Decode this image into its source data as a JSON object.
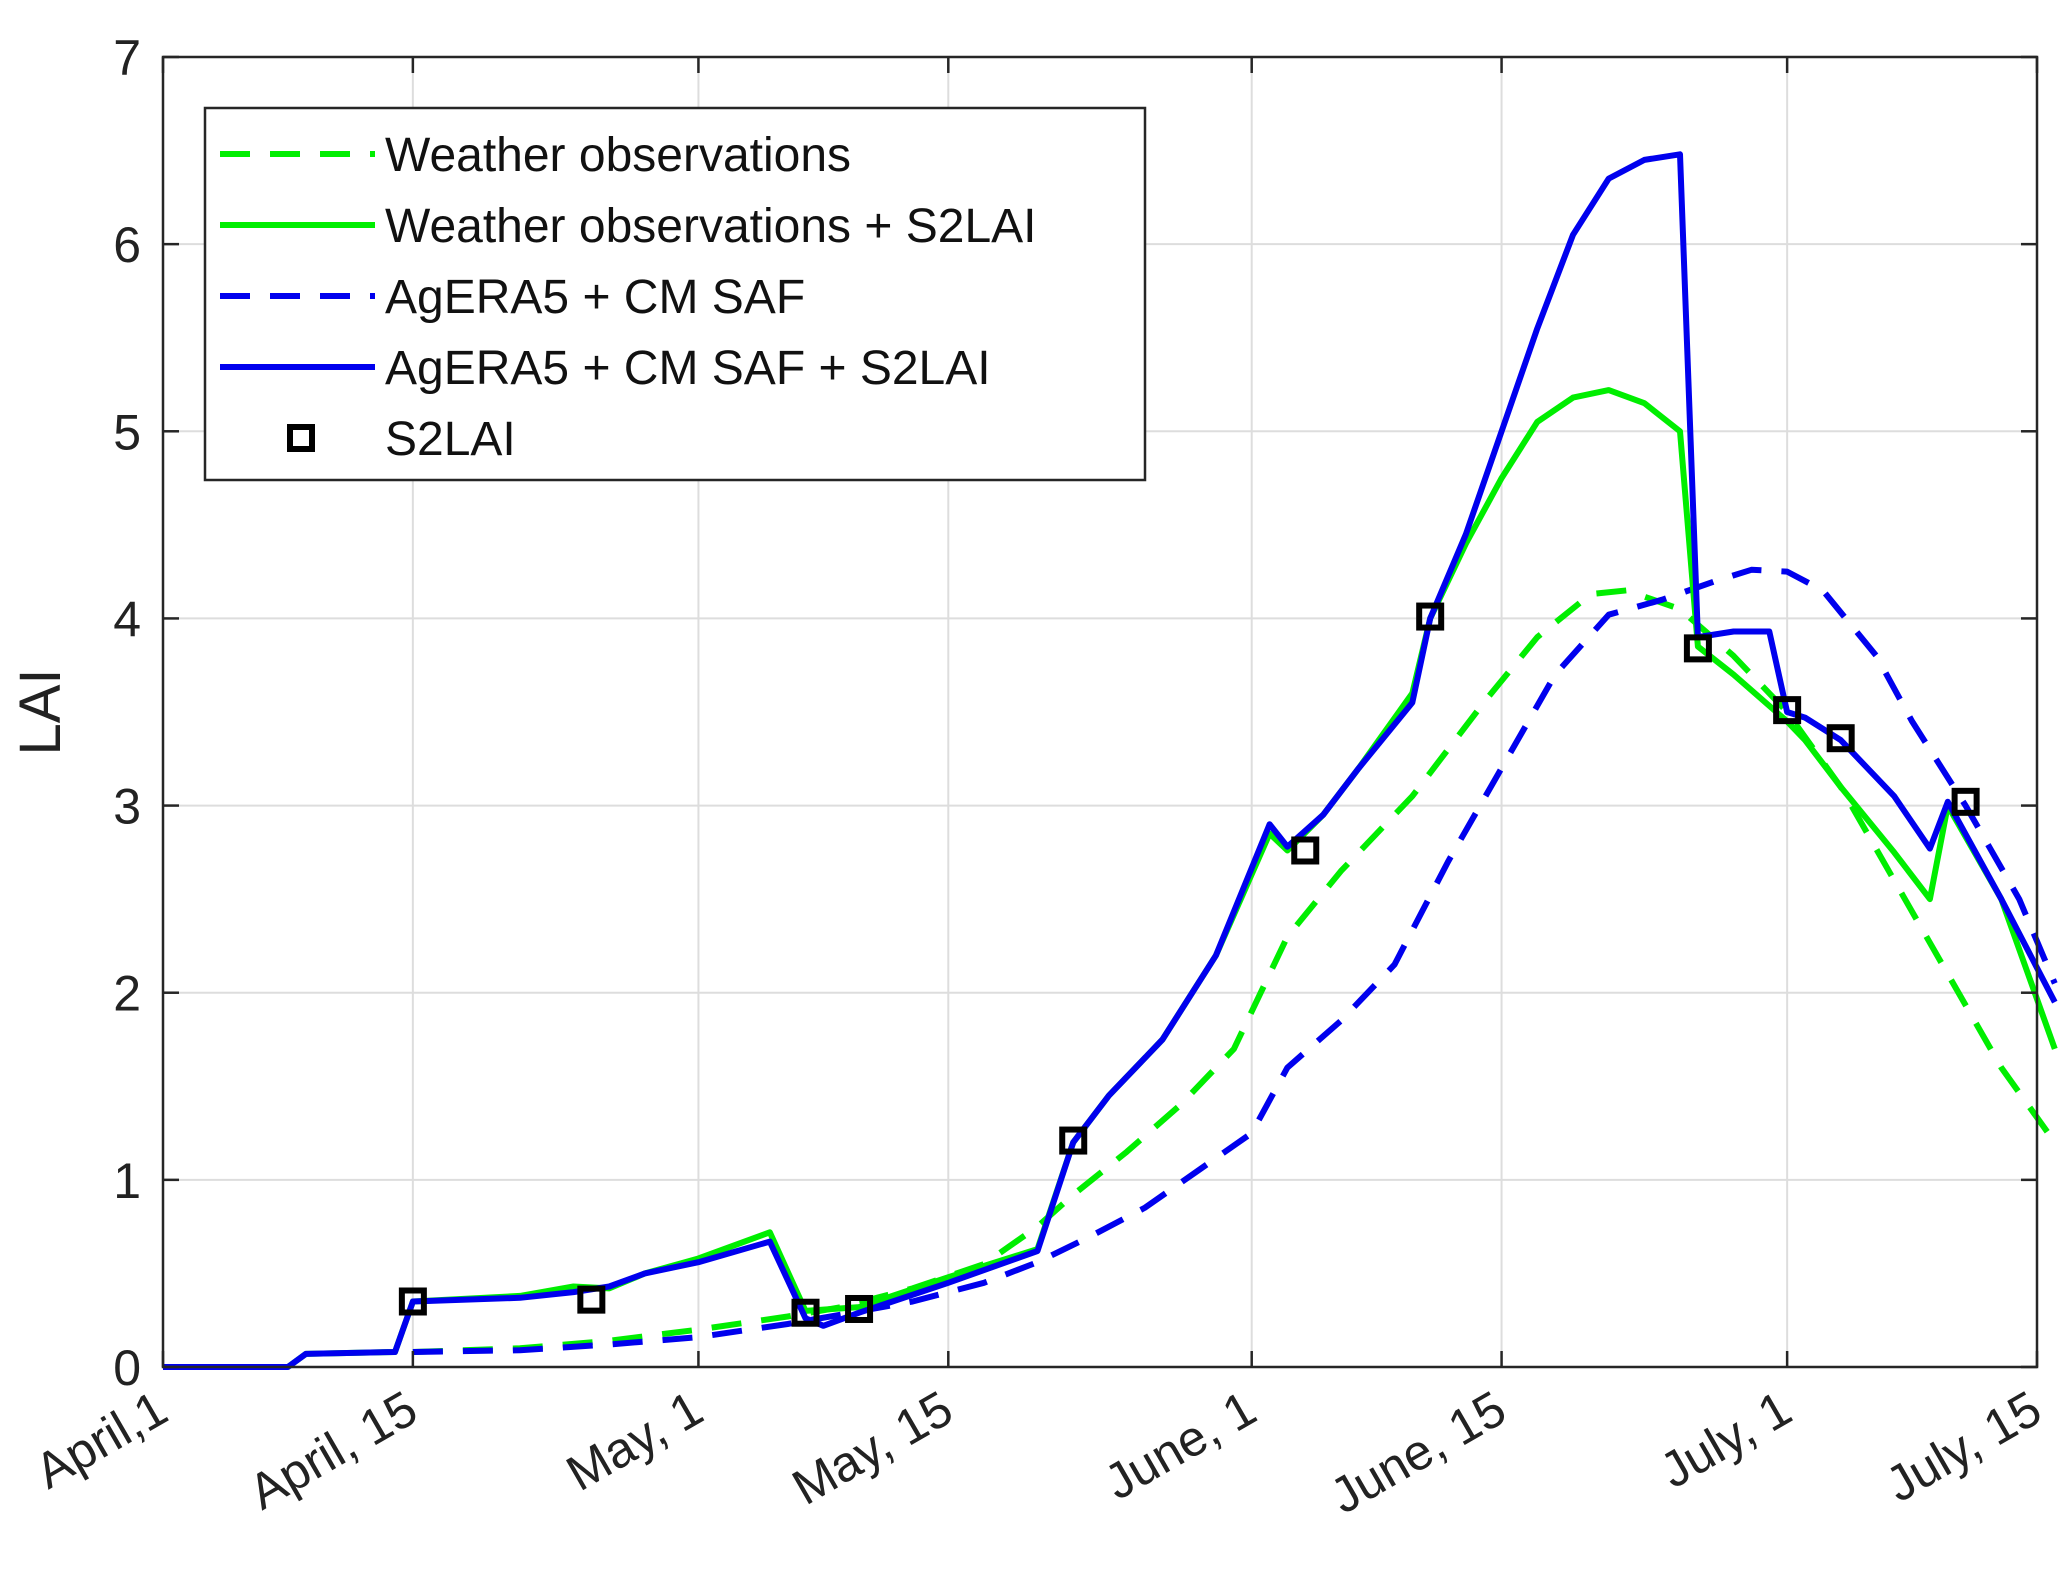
{
  "chart_data": {
    "type": "line",
    "title": "",
    "xlabel": "",
    "ylabel": "LAI",
    "xlim": [
      0,
      105
    ],
    "ylim": [
      0,
      7
    ],
    "grid": true,
    "legend_position": "top-left",
    "x_unit": "days since April 1",
    "x_ticks": [
      {
        "value": 0,
        "label": "April,1"
      },
      {
        "value": 14,
        "label": "April, 15"
      },
      {
        "value": 30,
        "label": "May, 1"
      },
      {
        "value": 44,
        "label": "May, 15"
      },
      {
        "value": 61,
        "label": "June, 1"
      },
      {
        "value": 75,
        "label": "June, 15"
      },
      {
        "value": 91,
        "label": "July, 1"
      },
      {
        "value": 105,
        "label": "July, 15"
      }
    ],
    "y_ticks": [
      {
        "value": 0,
        "label": "0"
      },
      {
        "value": 1,
        "label": "1"
      },
      {
        "value": 2,
        "label": "2"
      },
      {
        "value": 3,
        "label": "3"
      },
      {
        "value": 4,
        "label": "4"
      },
      {
        "value": 5,
        "label": "5"
      },
      {
        "value": 6,
        "label": "6"
      },
      {
        "value": 7,
        "label": "7"
      }
    ],
    "series": [
      {
        "name": "Weather observations",
        "color": "#00ee00",
        "style": "dashed",
        "points": [
          [
            14,
            0.08
          ],
          [
            20,
            0.1
          ],
          [
            25,
            0.14
          ],
          [
            30,
            0.2
          ],
          [
            35,
            0.27
          ],
          [
            38,
            0.32
          ],
          [
            42,
            0.42
          ],
          [
            46,
            0.55
          ],
          [
            49,
            0.75
          ],
          [
            51,
            0.92
          ],
          [
            54,
            1.15
          ],
          [
            57,
            1.4
          ],
          [
            60,
            1.7
          ],
          [
            63,
            2.3
          ],
          [
            66,
            2.65
          ],
          [
            70,
            3.05
          ],
          [
            74,
            3.55
          ],
          [
            77,
            3.9
          ],
          [
            80,
            4.13
          ],
          [
            82,
            4.15
          ],
          [
            85,
            4.05
          ],
          [
            88,
            3.8
          ],
          [
            91,
            3.5
          ],
          [
            94,
            3.1
          ],
          [
            97,
            2.6
          ],
          [
            100,
            2.1
          ],
          [
            103,
            1.6
          ],
          [
            106,
            1.2
          ]
        ]
      },
      {
        "name": "Weather observations + S2LAI",
        "color": "#00ee00",
        "style": "solid",
        "points": [
          [
            0,
            0
          ],
          [
            7,
            0
          ],
          [
            8,
            0.07
          ],
          [
            13,
            0.08
          ],
          [
            14,
            0.35
          ],
          [
            20,
            0.38
          ],
          [
            23,
            0.43
          ],
          [
            25,
            0.42
          ],
          [
            27,
            0.5
          ],
          [
            30,
            0.58
          ],
          [
            34,
            0.72
          ],
          [
            36,
            0.3
          ],
          [
            39,
            0.32
          ],
          [
            44,
            0.48
          ],
          [
            49,
            0.63
          ],
          [
            51,
            1.2
          ],
          [
            53,
            1.45
          ],
          [
            56,
            1.75
          ],
          [
            59,
            2.2
          ],
          [
            62,
            2.85
          ],
          [
            63,
            2.76
          ],
          [
            65,
            2.95
          ],
          [
            67,
            3.2
          ],
          [
            70,
            3.6
          ],
          [
            71,
            4.0
          ],
          [
            73,
            4.4
          ],
          [
            75,
            4.75
          ],
          [
            77,
            5.05
          ],
          [
            79,
            5.18
          ],
          [
            81,
            5.22
          ],
          [
            83,
            5.15
          ],
          [
            85,
            5.0
          ],
          [
            86,
            3.85
          ],
          [
            88,
            3.7
          ],
          [
            91,
            3.45
          ],
          [
            92,
            3.35
          ],
          [
            94,
            3.1
          ],
          [
            97,
            2.75
          ],
          [
            99,
            2.5
          ],
          [
            100,
            3.0
          ],
          [
            103,
            2.5
          ],
          [
            106,
            1.7
          ]
        ]
      },
      {
        "name": "AgERA5 + CM SAF",
        "color": "#0000ee",
        "style": "dashed",
        "points": [
          [
            14,
            0.08
          ],
          [
            20,
            0.09
          ],
          [
            25,
            0.12
          ],
          [
            30,
            0.16
          ],
          [
            35,
            0.23
          ],
          [
            38,
            0.28
          ],
          [
            42,
            0.35
          ],
          [
            46,
            0.45
          ],
          [
            49,
            0.56
          ],
          [
            52,
            0.7
          ],
          [
            55,
            0.85
          ],
          [
            58,
            1.05
          ],
          [
            61,
            1.25
          ],
          [
            63,
            1.6
          ],
          [
            66,
            1.85
          ],
          [
            69,
            2.15
          ],
          [
            72,
            2.7
          ],
          [
            75,
            3.2
          ],
          [
            78,
            3.7
          ],
          [
            81,
            4.02
          ],
          [
            84,
            4.1
          ],
          [
            87,
            4.2
          ],
          [
            89,
            4.26
          ],
          [
            91,
            4.25
          ],
          [
            93,
            4.15
          ],
          [
            96,
            3.8
          ],
          [
            98,
            3.45
          ],
          [
            101,
            3.0
          ],
          [
            104,
            2.5
          ],
          [
            106,
            2.05
          ]
        ]
      },
      {
        "name": "AgERA5 + CM SAF + S2LAI",
        "color": "#0000ee",
        "style": "solid",
        "points": [
          [
            0,
            0
          ],
          [
            7,
            0
          ],
          [
            8,
            0.07
          ],
          [
            13,
            0.08
          ],
          [
            14,
            0.35
          ],
          [
            20,
            0.37
          ],
          [
            23,
            0.4
          ],
          [
            25,
            0.43
          ],
          [
            27,
            0.5
          ],
          [
            30,
            0.56
          ],
          [
            34,
            0.67
          ],
          [
            36,
            0.26
          ],
          [
            37,
            0.22
          ],
          [
            39,
            0.29
          ],
          [
            44,
            0.45
          ],
          [
            49,
            0.62
          ],
          [
            51,
            1.2
          ],
          [
            53,
            1.45
          ],
          [
            56,
            1.75
          ],
          [
            59,
            2.2
          ],
          [
            62,
            2.9
          ],
          [
            63,
            2.78
          ],
          [
            65,
            2.95
          ],
          [
            67,
            3.2
          ],
          [
            70,
            3.55
          ],
          [
            71,
            4.0
          ],
          [
            73,
            4.45
          ],
          [
            75,
            5.0
          ],
          [
            77,
            5.55
          ],
          [
            79,
            6.05
          ],
          [
            81,
            6.35
          ],
          [
            83,
            6.45
          ],
          [
            85,
            6.48
          ],
          [
            86,
            3.9
          ],
          [
            88,
            3.93
          ],
          [
            90,
            3.93
          ],
          [
            91,
            3.5
          ],
          [
            92,
            3.47
          ],
          [
            94,
            3.35
          ],
          [
            97,
            3.05
          ],
          [
            99,
            2.77
          ],
          [
            100,
            3.02
          ],
          [
            103,
            2.5
          ],
          [
            106,
            1.95
          ]
        ]
      },
      {
        "name": "S2LAI",
        "color": "#000000",
        "style": "markers",
        "marker": "square",
        "points": [
          [
            14,
            0.35
          ],
          [
            24,
            0.36
          ],
          [
            36,
            0.29
          ],
          [
            39,
            0.31
          ],
          [
            51,
            1.21
          ],
          [
            64,
            2.76
          ],
          [
            71,
            4.01
          ],
          [
            86,
            3.84
          ],
          [
            91,
            3.51
          ],
          [
            94,
            3.36
          ],
          [
            101,
            3.02
          ]
        ]
      }
    ]
  }
}
